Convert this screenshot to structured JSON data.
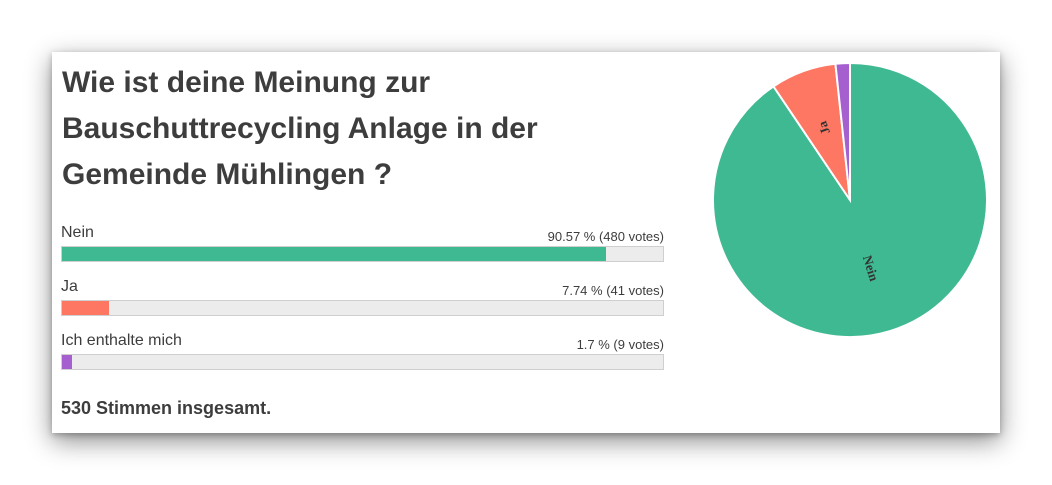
{
  "poll": {
    "title": "Wie ist deine Meinung zur Bauschuttrecycling Anlage in der Gemeinde Mühlingen ?",
    "options": [
      {
        "label": "Nein",
        "stats": "90.57 % (480 votes)",
        "percent": 90.57,
        "votes": 480,
        "color": "#3fb991"
      },
      {
        "label": "Ja",
        "stats": "7.74 % (41 votes)",
        "percent": 7.74,
        "votes": 41,
        "color": "#fd7763"
      },
      {
        "label": "Ich enthalte mich",
        "stats": "1.7 % (9 votes)",
        "percent": 1.7,
        "votes": 9,
        "color": "#a65fcf"
      }
    ],
    "total": "530 Stimmen insgesamt."
  },
  "chart_data": {
    "type": "pie",
    "categories": [
      "Nein",
      "Ja",
      "Ich enthalte mich"
    ],
    "values": [
      480,
      41,
      9
    ],
    "percentages": [
      90.57,
      7.74,
      1.7
    ],
    "slice_labels": [
      "Nein",
      "Ja",
      ""
    ],
    "colors": [
      "#3fb991",
      "#fd7763",
      "#a65fcf"
    ]
  }
}
